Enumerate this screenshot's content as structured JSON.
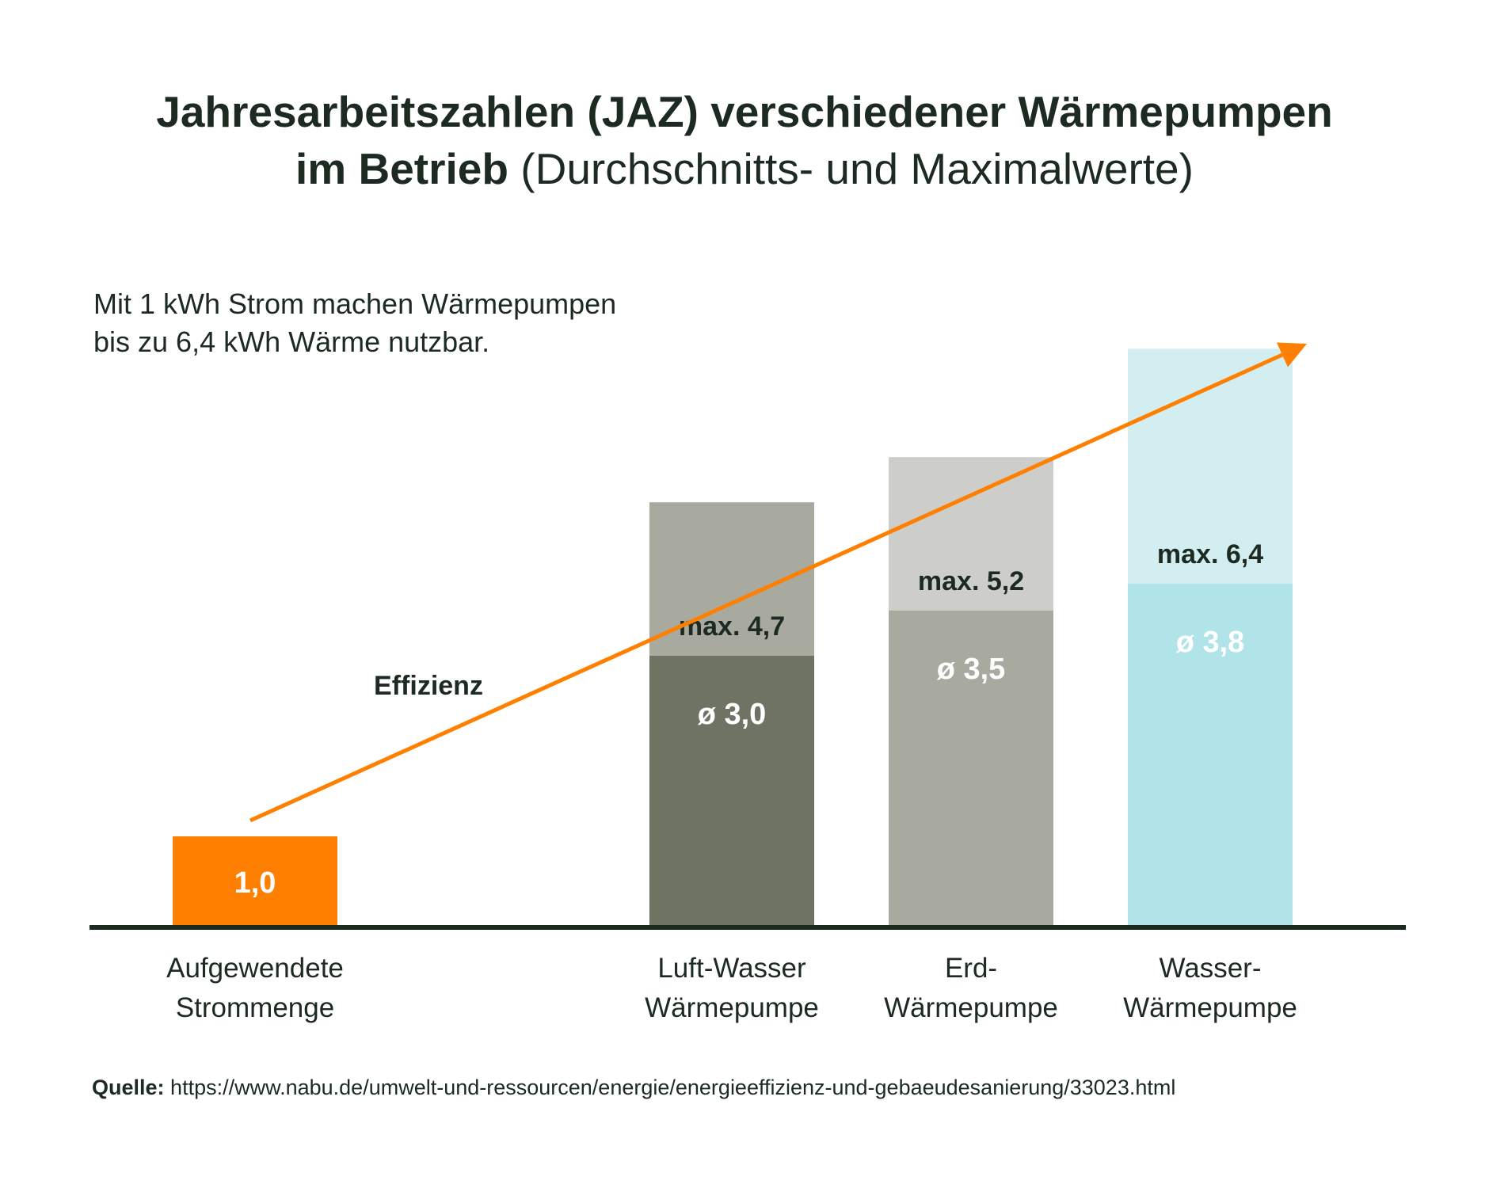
{
  "title": {
    "line1": "Jahresarbeitszahlen (JAZ) verschiedener Wärmepumpen",
    "line2_bold": "im Betrieb",
    "line2_light": "(Durchschnitts- und Maximalwerte)"
  },
  "subtitle": {
    "line1": "Mit 1 kWh Strom machen Wärmepumpen",
    "line2": "bis zu 6,4 kWh Wärme nutzbar."
  },
  "chart_data": {
    "type": "bar",
    "categories": [
      [
        "Aufgewendete",
        "Strommenge"
      ],
      [
        "Luft-Wasser",
        "Wärmepumpe"
      ],
      [
        "Erd-",
        "Wärmepumpe"
      ],
      [
        "Wasser-",
        "Wärmepumpe"
      ]
    ],
    "bars": [
      {
        "avg": 1.0,
        "max": null,
        "avg_label": "1,0",
        "max_label": "",
        "avg_color": "#ff7f00",
        "max_color": "",
        "avg_text_color": "#ffffff"
      },
      {
        "avg": 3.0,
        "max": 4.7,
        "avg_label": "ø 3,0",
        "max_label": "max. 4,7",
        "avg_color": "#6f7364",
        "max_color": "#a8aaa0",
        "avg_text_color": "#ffffff"
      },
      {
        "avg": 3.5,
        "max": 5.2,
        "avg_label": "ø 3,5",
        "max_label": "max. 5,2",
        "avg_color": "#a8aaa0",
        "max_color": "#cdceca",
        "avg_text_color": "#ffffff"
      },
      {
        "avg": 3.8,
        "max": 6.4,
        "avg_label": "ø 3,8",
        "max_label": "max. 6,4",
        "avg_color": "#b0e4e8",
        "max_color": "#d3eef0",
        "avg_text_color": "#ffffff"
      }
    ],
    "arrow": {
      "label": "Effizienz",
      "color": "#ff7f00"
    },
    "axis_color": "#1c2a22",
    "ylim": [
      0,
      6.4
    ]
  },
  "source": {
    "label": "Quelle:",
    "url": "https://www.nabu.de/umwelt-und-ressourcen/energie/energieeffizienz-und-gebaeudesanierung/33023.html"
  }
}
